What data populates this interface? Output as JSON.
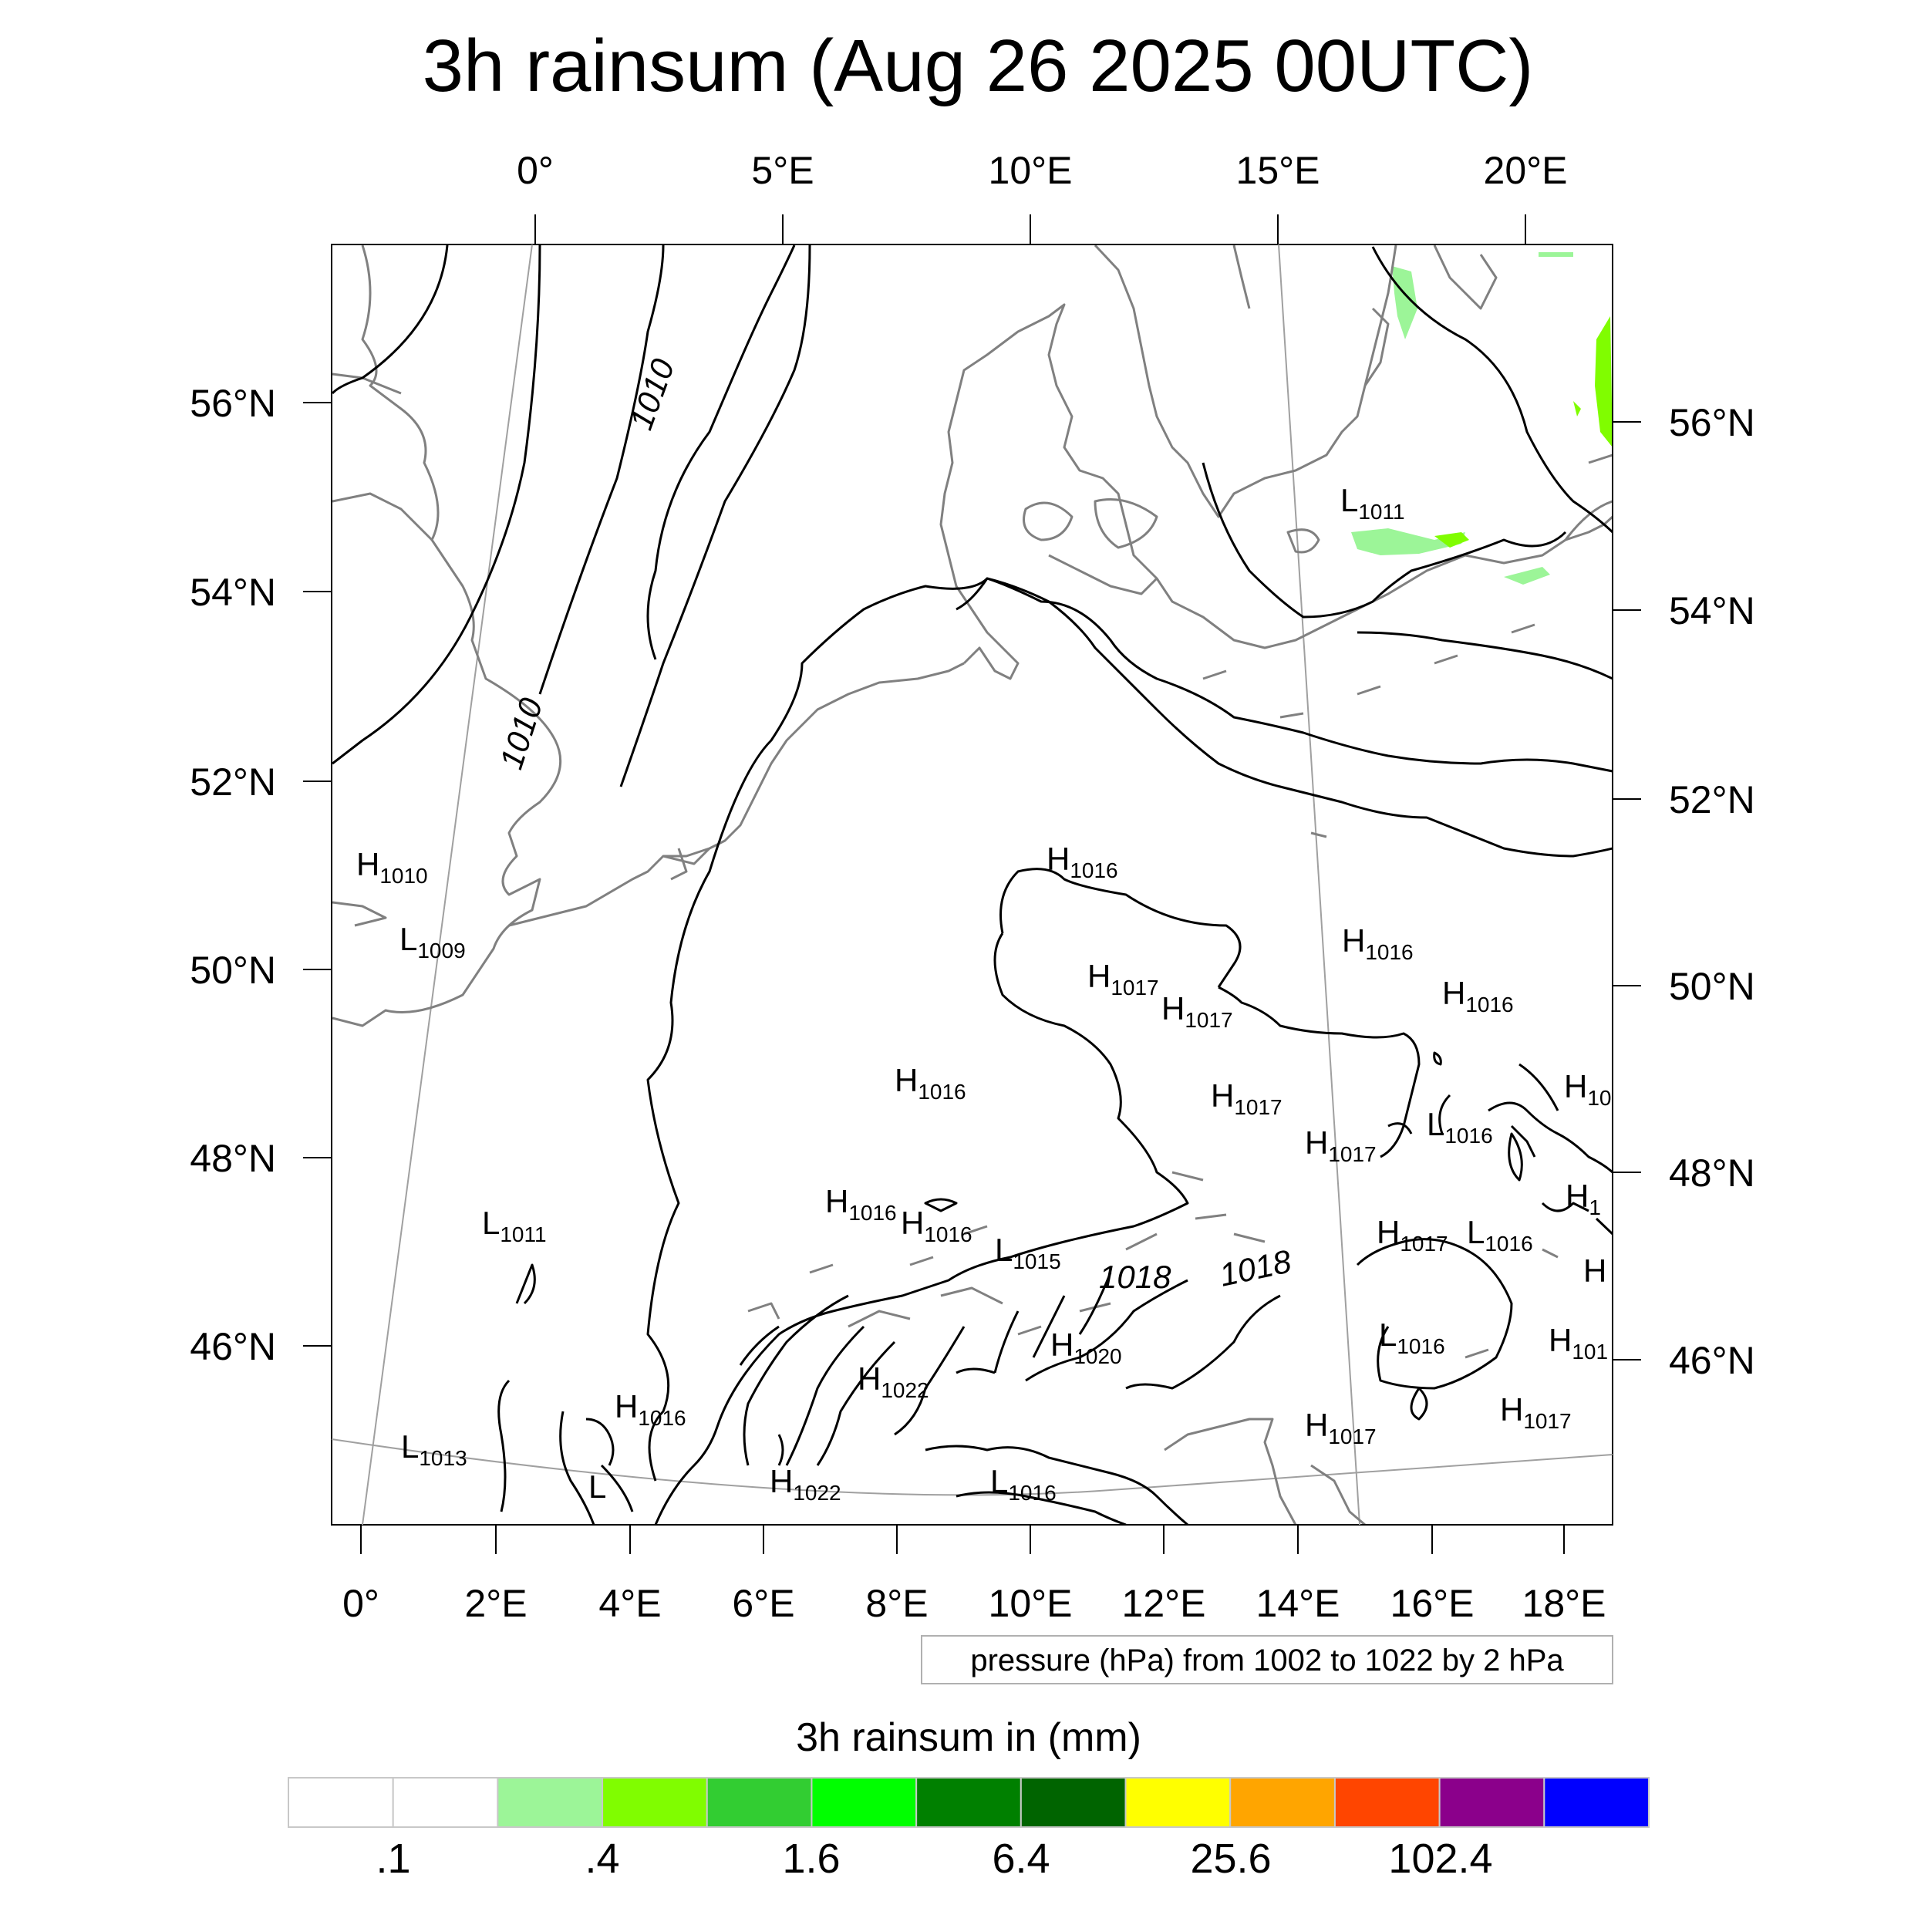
{
  "title": "3h rainsum (Aug 26 2025 00UTC)",
  "top_lon_labels": [
    "0°",
    "5°E",
    "10°E",
    "15°E",
    "20°E"
  ],
  "bottom_lon_labels": [
    "0°",
    "2°E",
    "4°E",
    "6°E",
    "8°E",
    "10°E",
    "12°E",
    "14°E",
    "16°E",
    "18°E"
  ],
  "left_lat_labels": [
    "56°N",
    "54°N",
    "52°N",
    "50°N",
    "48°N",
    "46°N"
  ],
  "right_lat_labels": [
    "56°N",
    "54°N",
    "52°N",
    "50°N",
    "48°N",
    "46°N"
  ],
  "pressure_systems": [
    {
      "letter": "L",
      "value": "1011"
    },
    {
      "letter": "H",
      "value": "1010"
    },
    {
      "letter": "L",
      "value": "1009"
    },
    {
      "letter": "H",
      "value": "1016"
    },
    {
      "letter": "H",
      "value": "1017"
    },
    {
      "letter": "H",
      "value": "1017"
    },
    {
      "letter": "H",
      "value": "1016"
    },
    {
      "letter": "H",
      "value": "1016"
    },
    {
      "letter": "H",
      "value": "1016"
    },
    {
      "letter": "H",
      "value": "1017"
    },
    {
      "letter": "H",
      "value": "1017"
    },
    {
      "letter": "L",
      "value": "1016"
    },
    {
      "letter": "H",
      "value": "10"
    },
    {
      "letter": "H",
      "value": "1016"
    },
    {
      "letter": "H",
      "value": "1016"
    },
    {
      "letter": "L",
      "value": "1011"
    },
    {
      "letter": "L",
      "value": "1015"
    },
    {
      "letter": "H",
      "value": "1017"
    },
    {
      "letter": "L",
      "value": "1016"
    },
    {
      "letter": "H",
      "value": "1"
    },
    {
      "letter": "H",
      "value": ""
    },
    {
      "letter": "H",
      "value": "1020"
    },
    {
      "letter": "L",
      "value": "1016"
    },
    {
      "letter": "H",
      "value": "101"
    },
    {
      "letter": "H",
      "value": "1022"
    },
    {
      "letter": "H",
      "value": "1016"
    },
    {
      "letter": "L",
      "value": "1013"
    },
    {
      "letter": "H",
      "value": "1017"
    },
    {
      "letter": "H",
      "value": "1017"
    },
    {
      "letter": "H",
      "value": "1022"
    },
    {
      "letter": "L",
      "value": "1016"
    }
  ],
  "contour_labels": [
    "1010",
    "1010",
    "1018",
    "1018"
  ],
  "info_box": "pressure (hPa) from 1002 to 1022 by 2 hPa",
  "colorbar": {
    "title": "3h rainsum in (mm)",
    "labels": [
      ".1",
      ".4",
      "1.6",
      "6.4",
      "25.6",
      "102.4"
    ],
    "colors": [
      "#ffffff",
      "#ffffff",
      "#9cf598",
      "#80fd00",
      "#32cd32",
      "#00ff00",
      "#008000",
      "#006400",
      "#ffff00",
      "#ffa500",
      "#ff4500",
      "#8b008b",
      "#0000ff"
    ]
  }
}
